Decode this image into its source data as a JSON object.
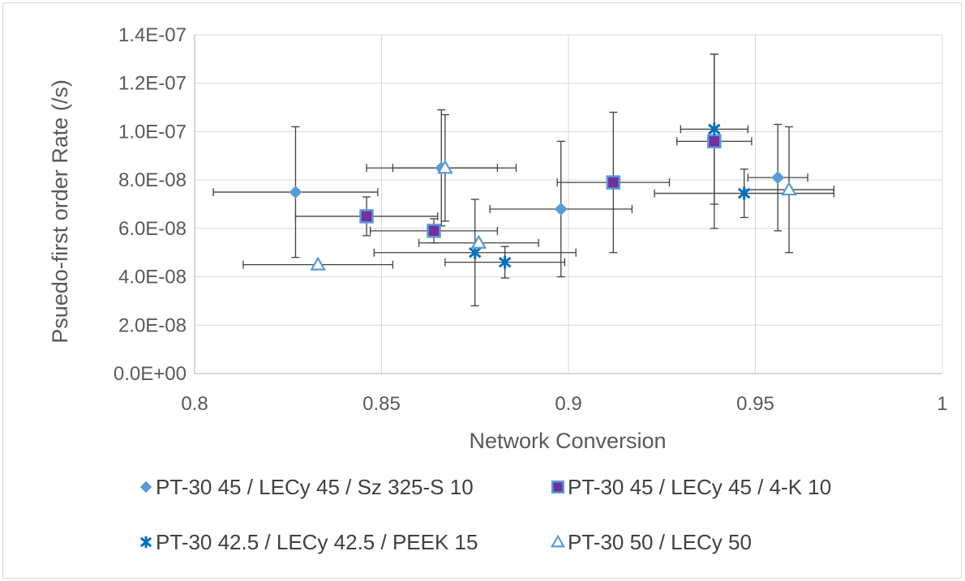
{
  "chart_data": {
    "type": "scatter",
    "title": "",
    "xlabel": "Network Conversion",
    "ylabel": "Psuedo-first order Rate (/s)",
    "xlim": [
      0.8,
      1.0
    ],
    "ylim": [
      0,
      1.4e-07
    ],
    "x_ticks": [
      "0.8",
      "0.85",
      "0.9",
      "0.95",
      "1"
    ],
    "x_tick_values": [
      0.8,
      0.85,
      0.9,
      0.95,
      1.0
    ],
    "y_ticks": [
      "0.0E+00",
      "2.0E-08",
      "4.0E-08",
      "6.0E-08",
      "8.0E-08",
      "1.0E-07",
      "1.2E-07",
      "1.4E-07"
    ],
    "y_tick_values": [
      0,
      2e-08,
      4e-08,
      6e-08,
      8e-08,
      1e-07,
      1.2e-07,
      1.4e-07
    ],
    "grid": true,
    "legend_position": "bottom",
    "error_bar_color": "#404040",
    "series": [
      {
        "name": "PT-30 45 / LECy 45 / Sz 325-S 10",
        "marker": "diamond",
        "color": "#5b9bd5",
        "points": [
          {
            "x": 0.827,
            "y": 7.5e-08,
            "xerr": 0.022,
            "yerr": 2.7e-08
          },
          {
            "x": 0.866,
            "y": 8.5e-08,
            "xerr": 0.02,
            "yerr": 2.4e-08
          },
          {
            "x": 0.898,
            "y": 6.8e-08,
            "xerr": 0.019,
            "yerr": 2.8e-08
          },
          {
            "x": 0.956,
            "y": 8.1e-08,
            "xerr": 0.008,
            "yerr": 2.2e-08
          }
        ]
      },
      {
        "name": "PT-30 45 / LECy 45 / 4-K 10",
        "marker": "square",
        "color": "#7030a0",
        "edge_color": "#5b9bd5",
        "points": [
          {
            "x": 0.846,
            "y": 6.5e-08,
            "xerr": 0.019,
            "yerr": 8e-09
          },
          {
            "x": 0.864,
            "y": 5.9e-08,
            "xerr": 0.017,
            "yerr": 5e-09
          },
          {
            "x": 0.912,
            "y": 7.9e-08,
            "xerr": 0.015,
            "yerr": 2.9e-08
          },
          {
            "x": 0.939,
            "y": 9.6e-08,
            "xerr": 0.01,
            "yerr": 3.6e-08
          }
        ]
      },
      {
        "name": "PT-30 42.5 / LECy 42.5 / PEEK 15",
        "marker": "asterisk",
        "color": "#0070c0",
        "points": [
          {
            "x": 0.875,
            "y": 5e-08,
            "xerr": 0.027,
            "yerr": 2.2e-08
          },
          {
            "x": 0.883,
            "y": 4.6e-08,
            "xerr": 0.016,
            "yerr": 6.5e-09
          },
          {
            "x": 0.939,
            "y": 1.01e-07,
            "xerr": 0.009,
            "yerr": 3.1e-08
          },
          {
            "x": 0.947,
            "y": 7.45e-08,
            "xerr": 0.024,
            "yerr": 1e-08
          }
        ]
      },
      {
        "name": "PT-30 50 / LECy 50",
        "marker": "triangle-open",
        "color": "#5b9bd5",
        "points": [
          {
            "x": 0.833,
            "y": 4.5e-08,
            "xerr": 0.02,
            "yerr": 0
          },
          {
            "x": 0.867,
            "y": 8.5e-08,
            "xerr": 0.014,
            "yerr": 2.2e-08
          },
          {
            "x": 0.876,
            "y": 5.4e-08,
            "xerr": 0.016,
            "yerr": 0
          },
          {
            "x": 0.959,
            "y": 7.6e-08,
            "xerr": 0.012,
            "yerr": 2.6e-08
          }
        ]
      }
    ]
  }
}
